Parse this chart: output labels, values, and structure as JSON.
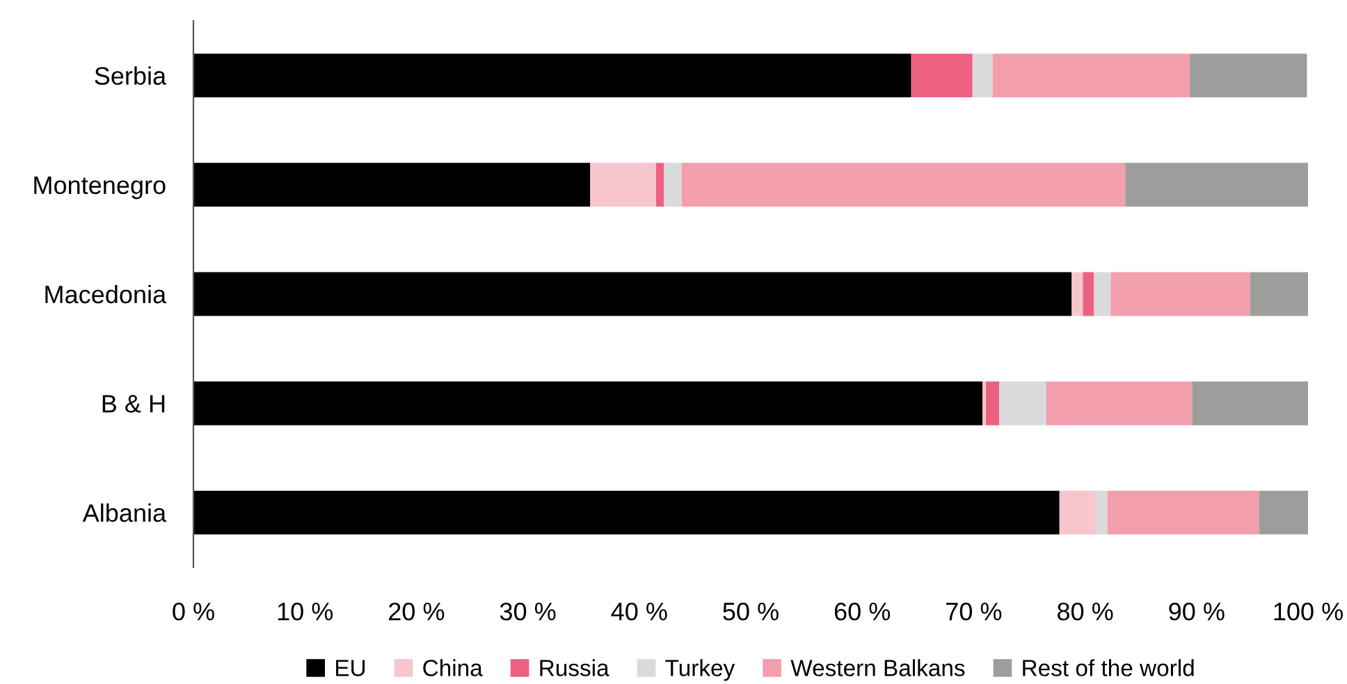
{
  "chart_data": {
    "type": "bar",
    "orientation": "horizontal",
    "stacked": true,
    "categories": [
      "Serbia",
      "Montenegro",
      "Macedonia",
      "B & H",
      "Albania"
    ],
    "series": [
      {
        "name": "EU",
        "color": "#000000",
        "values": [
          64.4,
          35.6,
          78.8,
          70.8,
          77.7
        ]
      },
      {
        "name": "China",
        "color": "#f7c5cc",
        "values": [
          0,
          5.9,
          1.0,
          0.3,
          3.2
        ]
      },
      {
        "name": "Russia",
        "color": "#ec6181",
        "values": [
          5.5,
          0.7,
          1.0,
          1.2,
          0
        ]
      },
      {
        "name": "Turkey",
        "color": "#dadada",
        "values": [
          1.8,
          1.6,
          1.5,
          4.2,
          1.1
        ]
      },
      {
        "name": "Western Balkans",
        "color": "#f29ead",
        "values": [
          17.7,
          39.8,
          12.5,
          13.1,
          13.6
        ]
      },
      {
        "name": "Rest of the world",
        "color": "#9d9d9c",
        "values": [
          10.5,
          16.4,
          5.2,
          10.4,
          4.4
        ]
      }
    ],
    "xlim": [
      0,
      100
    ],
    "xticks": [
      {
        "value": 0,
        "label": "0 %"
      },
      {
        "value": 10,
        "label": "10 %"
      },
      {
        "value": 20,
        "label": "20 %"
      },
      {
        "value": 30,
        "label": "30 %"
      },
      {
        "value": 40,
        "label": "40 %"
      },
      {
        "value": 50,
        "label": "50 %"
      },
      {
        "value": 60,
        "label": "60 %"
      },
      {
        "value": 70,
        "label": "70 %"
      },
      {
        "value": 80,
        "label": "80 %"
      },
      {
        "value": 90,
        "label": "90 %"
      },
      {
        "value": 100,
        "label": "100 %"
      }
    ],
    "grid": false,
    "legend": "bottom"
  }
}
